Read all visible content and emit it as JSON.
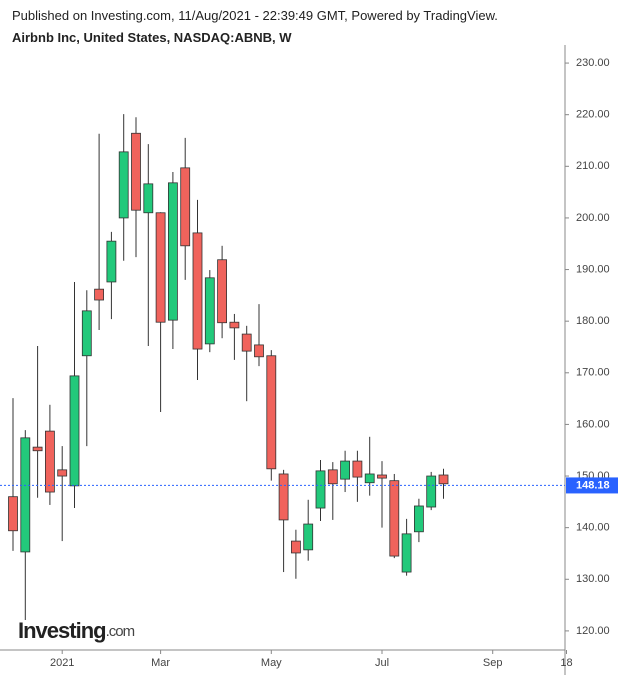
{
  "header": {
    "published": "Published on Investing.com, 11/Aug/2021 - 22:39:49 GMT, Powered by TradingView.",
    "symbol": "Airbnb Inc, United States, NASDAQ:ABNB, W"
  },
  "logo": {
    "brand": "Investing",
    "suffix": ".com"
  },
  "chart_data": {
    "type": "candlestick",
    "categories": [
      null,
      null,
      null,
      null,
      "2021",
      null,
      null,
      null,
      null,
      null,
      null,
      null,
      "Mar",
      null,
      null,
      null,
      null,
      null,
      null,
      null,
      null,
      "May",
      null,
      null,
      null,
      null,
      null,
      null,
      null,
      null,
      "Jul",
      null,
      null,
      null,
      null,
      null,
      null,
      null,
      null,
      "Sep",
      null,
      null,
      null,
      null,
      null,
      "18"
    ],
    "open": [
      146.0,
      135.3,
      155.6,
      158.7,
      151.2,
      148.1,
      173.3,
      186.2,
      187.6,
      200.0,
      216.4,
      201.0,
      201.0,
      180.2,
      209.7,
      197.1,
      175.6,
      191.9,
      179.8,
      177.5,
      175.4,
      173.3,
      150.4,
      137.4,
      135.7,
      143.8,
      151.2,
      149.4,
      152.9,
      148.7,
      150.2,
      149.1,
      131.4,
      139.2,
      144.0,
      150.2,
      null,
      null,
      null,
      null,
      null,
      null,
      null,
      null,
      null,
      null
    ],
    "high": [
      165.1,
      158.9,
      175.2,
      163.8,
      155.8,
      187.6,
      186.0,
      216.3,
      197.3,
      220.1,
      219.5,
      214.3,
      201.1,
      208.9,
      215.5,
      203.5,
      189.9,
      194.6,
      181.4,
      179.1,
      183.3,
      174.4,
      151.2,
      139.6,
      145.4,
      153.1,
      152.7,
      154.9,
      154.9,
      157.6,
      152.9,
      150.4,
      141.7,
      145.6,
      150.8,
      151.4,
      null,
      null,
      null,
      null,
      null,
      null,
      null,
      null,
      null,
      null
    ],
    "low": [
      135.5,
      122.1,
      145.8,
      144.4,
      137.4,
      143.8,
      155.8,
      178.3,
      180.4,
      191.7,
      192.4,
      175.2,
      162.4,
      174.6,
      188.0,
      168.6,
      174.0,
      176.7,
      172.5,
      164.5,
      171.3,
      149.1,
      131.4,
      130.1,
      133.6,
      141.3,
      141.5,
      146.9,
      145.0,
      146.2,
      140.0,
      134.1,
      130.7,
      137.2,
      143.4,
      145.6,
      null,
      null,
      null,
      null,
      null,
      null,
      null,
      null,
      null,
      null
    ],
    "close": [
      139.4,
      157.4,
      154.9,
      146.9,
      150.0,
      169.4,
      182.0,
      184.1,
      195.5,
      212.8,
      201.5,
      206.6,
      179.8,
      206.8,
      194.6,
      174.6,
      188.4,
      179.7,
      178.7,
      174.2,
      173.1,
      151.4,
      141.5,
      135.1,
      140.7,
      151.0,
      148.5,
      152.9,
      149.8,
      150.4,
      149.6,
      134.5,
      138.8,
      144.2,
      150.0,
      148.5,
      null,
      null,
      null,
      null,
      null,
      null,
      null,
      null,
      null,
      null
    ],
    "up_color": "#22c97b",
    "down_color": "#f0635c",
    "last_price": {
      "value": 148.18,
      "label": "148.18",
      "color": "#2962ff"
    },
    "ylim": [
      116.3,
      233.5
    ],
    "yticks": [
      {
        "value": 120,
        "label": "120.00"
      },
      {
        "value": 130,
        "label": "130.00"
      },
      {
        "value": 140,
        "label": "140.00"
      },
      {
        "value": 150,
        "label": "150.00"
      },
      {
        "value": 160,
        "label": "160.00"
      },
      {
        "value": 170,
        "label": "170.00"
      },
      {
        "value": 180,
        "label": "180.00"
      },
      {
        "value": 190,
        "label": "190.00"
      },
      {
        "value": 200,
        "label": "200.00"
      },
      {
        "value": 210,
        "label": "210.00"
      },
      {
        "value": 220,
        "label": "220.00"
      },
      {
        "value": 230,
        "label": "230.00"
      }
    ]
  }
}
